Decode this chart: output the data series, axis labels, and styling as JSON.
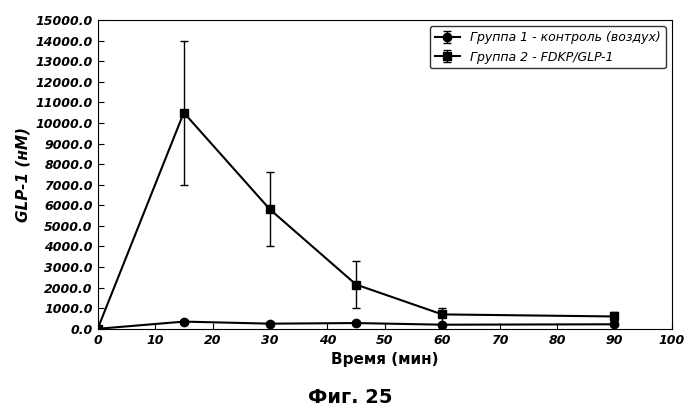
{
  "title": "Фиг. 25",
  "xlabel": "Время (мин)",
  "ylabel": "GLP-1 (нМ)",
  "xlim": [
    0,
    100
  ],
  "ylim": [
    0,
    15000
  ],
  "xticks": [
    0,
    10,
    20,
    30,
    40,
    50,
    60,
    70,
    80,
    90,
    100
  ],
  "yticks": [
    0,
    1000,
    2000,
    3000,
    4000,
    5000,
    6000,
    7000,
    8000,
    9000,
    10000,
    11000,
    12000,
    13000,
    14000,
    15000
  ],
  "group1": {
    "label": "Группа 1 - контроль (воздух)",
    "x": [
      0,
      15,
      30,
      45,
      60,
      90
    ],
    "y": [
      0,
      350,
      250,
      280,
      200,
      220
    ],
    "yerr_low": [
      0,
      100,
      80,
      80,
      60,
      70
    ],
    "yerr_high": [
      0,
      100,
      80,
      80,
      60,
      70
    ],
    "marker": "o",
    "color": "#000000",
    "linewidth": 1.5,
    "markersize": 6
  },
  "group2": {
    "label": "Группа 2 - FDKP/GLP-1",
    "x": [
      0,
      15,
      30,
      45,
      60,
      90
    ],
    "y": [
      0,
      10500,
      5800,
      2150,
      700,
      600
    ],
    "yerr_low": [
      0,
      3500,
      1800,
      1150,
      400,
      200
    ],
    "yerr_high": [
      0,
      3500,
      1800,
      1150,
      300,
      200
    ],
    "marker": "s",
    "color": "#000000",
    "linewidth": 1.5,
    "markersize": 6
  },
  "legend_loc": "upper right",
  "background_color": "#ffffff",
  "font_color": "#000000",
  "tick_fontsize": 9,
  "label_fontsize": 11,
  "title_fontsize": 14,
  "legend_fontsize": 9
}
